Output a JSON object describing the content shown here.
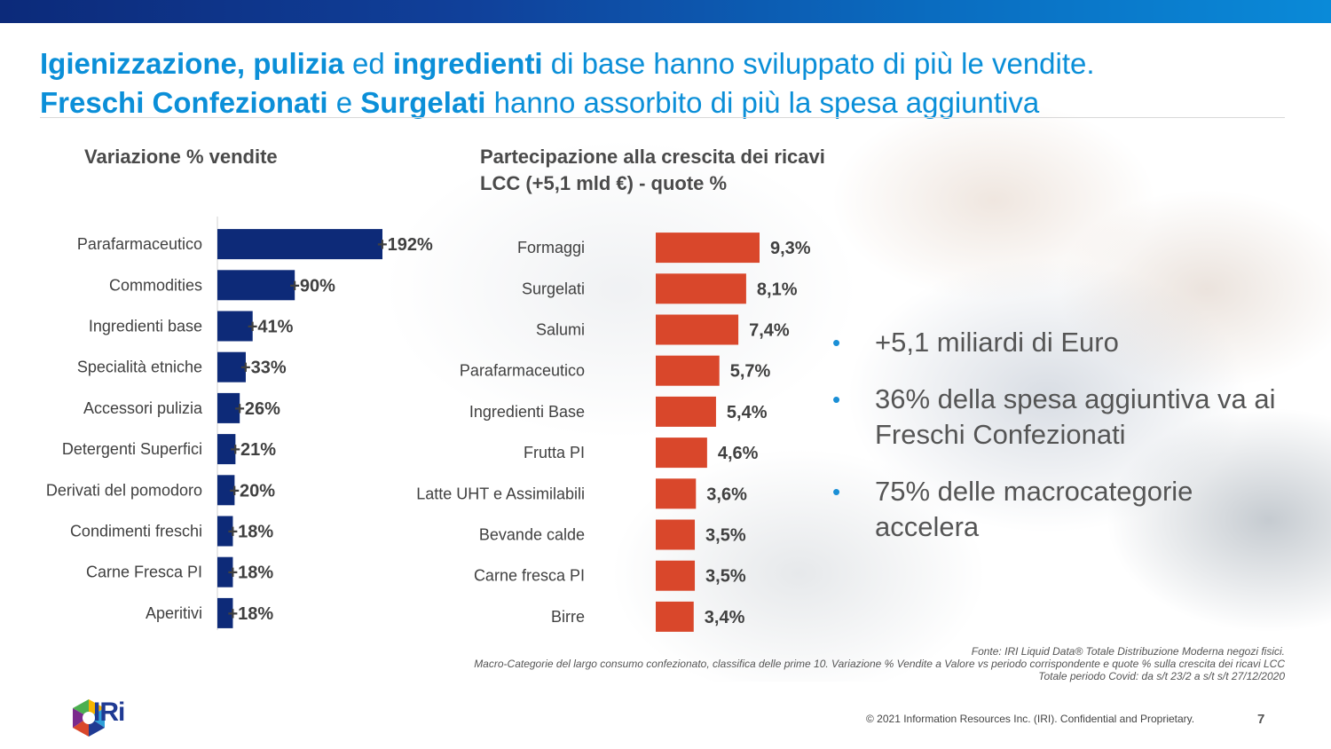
{
  "title": {
    "line1": [
      {
        "text": "Igienizzazione, pulizia",
        "bold": true
      },
      {
        "text": " ed ",
        "bold": false
      },
      {
        "text": "ingredienti",
        "bold": true
      },
      {
        "text": " di base hanno sviluppato di più le vendite.",
        "bold": false
      }
    ],
    "line2": [
      {
        "text": "Freschi Confezionati",
        "bold": true
      },
      {
        "text": " e ",
        "bold": false
      },
      {
        "text": "Surgelati",
        "bold": true
      },
      {
        "text": " hanno assorbito di più la spesa aggiuntiva",
        "bold": false
      }
    ]
  },
  "chart_data": [
    {
      "type": "bar",
      "orientation": "horizontal",
      "title": "Variazione % vendite",
      "color": "#0d2a78",
      "categories": [
        "Parafarmaceutico",
        "Commodities",
        "Ingredienti base",
        "Specialità etniche",
        "Accessori pulizia",
        "Detergenti Superfici",
        "Derivati del pomodoro",
        "Condimenti freschi",
        "Carne Fresca PI",
        "Aperitivi"
      ],
      "values": [
        192,
        90,
        41,
        33,
        26,
        21,
        20,
        18,
        18,
        18
      ],
      "labels": [
        "+192%",
        "+90%",
        "+41%",
        "+33%",
        "+26%",
        "+21%",
        "+20%",
        "+18%",
        "+18%",
        "+18%"
      ],
      "xlim": [
        0,
        192
      ]
    },
    {
      "type": "bar",
      "orientation": "horizontal",
      "title": "Partecipazione alla crescita dei ricavi LCC (+5,1 mld €) - quote %",
      "color": "#d9472b",
      "categories": [
        "Formaggi",
        "Surgelati",
        "Salumi",
        "Parafarmaceutico",
        "Ingredienti Base",
        "Frutta PI",
        "Latte UHT e Assimilabili",
        "Bevande calde",
        "Carne fresca PI",
        "Birre"
      ],
      "values": [
        9.3,
        8.1,
        7.4,
        5.7,
        5.4,
        4.6,
        3.6,
        3.5,
        3.5,
        3.4
      ],
      "labels": [
        "9,3%",
        "8,1%",
        "7,4%",
        "5,7%",
        "5,4%",
        "4,6%",
        "3,6%",
        "3,5%",
        "3,5%",
        "3,4%"
      ],
      "xlim": [
        0,
        9.3
      ]
    }
  ],
  "bullets": [
    "+5,1 miliardi di Euro",
    "36% della spesa aggiuntiva va ai Freschi Confezionati",
    "75% delle macrocategorie accelera"
  ],
  "bullet_glyph": "•",
  "source": {
    "line1": "Fonte: IRI Liquid Data®  Totale Distribuzione Moderna negozi fisici.",
    "line2": "Macro-Categorie del largo consumo confezionato, classifica delle prime 10. Variazione % Vendite a Valore vs periodo corrispondente e quote % sulla crescita dei ricavi LCC",
    "line3": "Totale periodo Covid: da s/t 23/2 a s/t  s/t 27/12/2020"
  },
  "footer": {
    "copyright": "© 2021 Information Resources Inc. (IRI). Confidential and Proprietary.",
    "page": "7",
    "logo_text": "IRi"
  },
  "colors": {
    "title": "#0b8fd8",
    "accent_blue": "#1a8fd6",
    "navy": "#0d2a78",
    "orange": "#d9472b"
  }
}
